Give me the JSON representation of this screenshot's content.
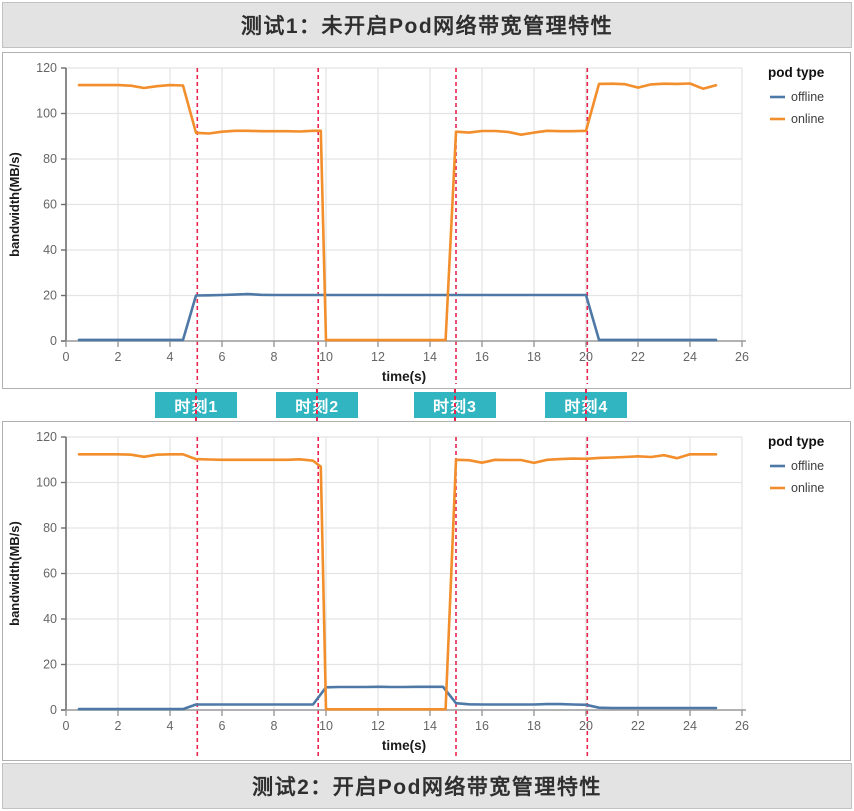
{
  "titles": {
    "test1": "测试1：未开启Pod网络带宽管理特性",
    "test2": "测试2：开启Pod网络带宽管理特性"
  },
  "moment_labels": [
    {
      "label": "时刻1",
      "t": 5.05
    },
    {
      "label": "时刻2",
      "t": 9.7
    },
    {
      "label": "时刻3",
      "t": 15.0
    },
    {
      "label": "时刻4",
      "t": 20.05
    }
  ],
  "colors": {
    "offline_line": "#4e79a7",
    "online_line": "#f28e2b",
    "dashed_marker": "#e8254f",
    "moment_box": "#31b5c0",
    "grid": "#e4e4e4",
    "y_axis": "#6e6e6e",
    "x_axis": "#9a9a9a",
    "tick_text": "#666666",
    "axis_title_text": "#1a1a1a",
    "title_bar_bg": "#e3e3e3"
  },
  "chart_data": [
    {
      "type": "line",
      "title": "测试1：未开启Pod网络带宽管理特性",
      "xlabel": "time(s)",
      "ylabel": "bandwidth(MB/s)",
      "xlim": [
        0,
        26
      ],
      "ylim": [
        0,
        120
      ],
      "xticks": [
        0,
        2,
        4,
        6,
        8,
        10,
        12,
        14,
        16,
        18,
        20,
        22,
        24,
        26
      ],
      "yticks": [
        0,
        20,
        40,
        60,
        80,
        100,
        120
      ],
      "grid": true,
      "legend_title": "pod type",
      "legend_position": "right",
      "vlines": {
        "x": [
          5.05,
          9.7,
          15.0,
          20.05
        ],
        "style": "dashed",
        "color": "#e8254f"
      },
      "series": [
        {
          "name": "offline",
          "color": "#4e79a7",
          "points": [
            [
              0.5,
              0.5
            ],
            [
              1,
              0.5
            ],
            [
              1.5,
              0.5
            ],
            [
              2,
              0.5
            ],
            [
              2.5,
              0.5
            ],
            [
              3,
              0.5
            ],
            [
              3.5,
              0.5
            ],
            [
              4,
              0.5
            ],
            [
              4.5,
              0.5
            ],
            [
              5,
              20
            ],
            [
              5.5,
              20.1
            ],
            [
              6,
              20.2
            ],
            [
              6.5,
              20.4
            ],
            [
              7,
              20.6
            ],
            [
              7.5,
              20.3
            ],
            [
              8,
              20.2
            ],
            [
              8.5,
              20.2
            ],
            [
              9,
              20.2
            ],
            [
              9.5,
              20.2
            ],
            [
              10,
              20.2
            ],
            [
              11,
              20.2
            ],
            [
              12,
              20.2
            ],
            [
              13,
              20.2
            ],
            [
              14,
              20.2
            ],
            [
              15,
              20.2
            ],
            [
              16,
              20.2
            ],
            [
              17,
              20.2
            ],
            [
              18,
              20.2
            ],
            [
              19,
              20.2
            ],
            [
              20,
              20.2
            ],
            [
              20.5,
              0.5
            ],
            [
              21,
              0.5
            ],
            [
              22,
              0.5
            ],
            [
              23,
              0.5
            ],
            [
              24,
              0.5
            ],
            [
              25,
              0.5
            ]
          ]
        },
        {
          "name": "online",
          "color": "#f28e2b",
          "points": [
            [
              0.5,
              112.5
            ],
            [
              1,
              112.5
            ],
            [
              1.5,
              112.5
            ],
            [
              2,
              112.5
            ],
            [
              2.5,
              112.2
            ],
            [
              3,
              111.2
            ],
            [
              3.5,
              112.0
            ],
            [
              4,
              112.5
            ],
            [
              4.5,
              112.3
            ],
            [
              5,
              91.5
            ],
            [
              5.5,
              91.2
            ],
            [
              6,
              92.0
            ],
            [
              6.5,
              92.4
            ],
            [
              7,
              92.4
            ],
            [
              7.5,
              92.2
            ],
            [
              8,
              92.2
            ],
            [
              8.5,
              92.2
            ],
            [
              9,
              92.1
            ],
            [
              9.5,
              92.4
            ],
            [
              9.8,
              92.4
            ],
            [
              10,
              0.4
            ],
            [
              10.5,
              0.4
            ],
            [
              11,
              0.4
            ],
            [
              12,
              0.4
            ],
            [
              13,
              0.4
            ],
            [
              14,
              0.4
            ],
            [
              14.6,
              0.4
            ],
            [
              15,
              92.0
            ],
            [
              15.5,
              91.6
            ],
            [
              16,
              92.3
            ],
            [
              16.5,
              92.3
            ],
            [
              17,
              91.9
            ],
            [
              17.5,
              90.7
            ],
            [
              18,
              91.6
            ],
            [
              18.5,
              92.4
            ],
            [
              19,
              92.2
            ],
            [
              19.5,
              92.2
            ],
            [
              20,
              92.4
            ],
            [
              20.5,
              113.0
            ],
            [
              21,
              113.1
            ],
            [
              21.5,
              112.9
            ],
            [
              22,
              111.4
            ],
            [
              22.5,
              112.8
            ],
            [
              23,
              113.1
            ],
            [
              23.5,
              113.0
            ],
            [
              24,
              113.2
            ],
            [
              24.5,
              110.9
            ],
            [
              25,
              112.4
            ]
          ]
        }
      ]
    },
    {
      "type": "line",
      "title": "测试2：开启Pod网络带宽管理特性",
      "xlabel": "time(s)",
      "ylabel": "bandwidth(MB/s)",
      "xlim": [
        0,
        26
      ],
      "ylim": [
        0,
        120
      ],
      "xticks": [
        0,
        2,
        4,
        6,
        8,
        10,
        12,
        14,
        16,
        18,
        20,
        22,
        24,
        26
      ],
      "yticks": [
        0,
        20,
        40,
        60,
        80,
        100,
        120
      ],
      "grid": true,
      "legend_title": "pod type",
      "legend_position": "right",
      "vlines": {
        "x": [
          5.05,
          9.7,
          15.0,
          20.05
        ],
        "style": "dashed",
        "color": "#e8254f"
      },
      "series": [
        {
          "name": "offline",
          "color": "#4e79a7",
          "points": [
            [
              0.5,
              0.4
            ],
            [
              1,
              0.4
            ],
            [
              1.5,
              0.4
            ],
            [
              2,
              0.4
            ],
            [
              2.5,
              0.4
            ],
            [
              3,
              0.4
            ],
            [
              3.5,
              0.4
            ],
            [
              4,
              0.4
            ],
            [
              4.5,
              0.4
            ],
            [
              5,
              2.4
            ],
            [
              5.5,
              2.4
            ],
            [
              6,
              2.4
            ],
            [
              6.5,
              2.4
            ],
            [
              7,
              2.4
            ],
            [
              7.5,
              2.4
            ],
            [
              8,
              2.4
            ],
            [
              8.5,
              2.4
            ],
            [
              9,
              2.4
            ],
            [
              9.5,
              2.4
            ],
            [
              10,
              10.0
            ],
            [
              10.5,
              10.1
            ],
            [
              11,
              10.1
            ],
            [
              11.5,
              10.1
            ],
            [
              12,
              10.2
            ],
            [
              12.5,
              10.1
            ],
            [
              13,
              10.1
            ],
            [
              13.5,
              10.2
            ],
            [
              14,
              10.2
            ],
            [
              14.5,
              10.2
            ],
            [
              15,
              3.0
            ],
            [
              15.5,
              2.5
            ],
            [
              16,
              2.4
            ],
            [
              17,
              2.4
            ],
            [
              18,
              2.4
            ],
            [
              18.5,
              2.6
            ],
            [
              19,
              2.6
            ],
            [
              19.5,
              2.4
            ],
            [
              20,
              2.3
            ],
            [
              20.5,
              1.0
            ],
            [
              21,
              0.9
            ],
            [
              22,
              0.9
            ],
            [
              23,
              0.9
            ],
            [
              24,
              0.9
            ],
            [
              25,
              0.9
            ]
          ]
        },
        {
          "name": "online",
          "color": "#f28e2b",
          "points": [
            [
              0.5,
              112.4
            ],
            [
              1,
              112.4
            ],
            [
              1.5,
              112.4
            ],
            [
              2,
              112.4
            ],
            [
              2.5,
              112.2
            ],
            [
              3,
              111.3
            ],
            [
              3.5,
              112.2
            ],
            [
              4,
              112.4
            ],
            [
              4.5,
              112.4
            ],
            [
              5,
              110.3
            ],
            [
              5.5,
              110.1
            ],
            [
              6,
              110.0
            ],
            [
              6.5,
              110.0
            ],
            [
              7,
              110.0
            ],
            [
              7.5,
              110.0
            ],
            [
              8,
              110.0
            ],
            [
              8.5,
              110.0
            ],
            [
              9,
              110.2
            ],
            [
              9.5,
              109.6
            ],
            [
              9.8,
              107.0
            ],
            [
              10,
              0.3
            ],
            [
              10.5,
              0.3
            ],
            [
              11,
              0.3
            ],
            [
              12,
              0.3
            ],
            [
              13,
              0.3
            ],
            [
              14,
              0.3
            ],
            [
              14.6,
              0.3
            ],
            [
              15,
              110.0
            ],
            [
              15.5,
              109.8
            ],
            [
              16,
              108.7
            ],
            [
              16.5,
              110.0
            ],
            [
              17,
              109.9
            ],
            [
              17.5,
              109.9
            ],
            [
              18,
              108.6
            ],
            [
              18.5,
              110.0
            ],
            [
              19,
              110.3
            ],
            [
              19.5,
              110.5
            ],
            [
              20,
              110.4
            ],
            [
              20.5,
              110.8
            ],
            [
              21,
              111.0
            ],
            [
              21.5,
              111.2
            ],
            [
              22,
              111.5
            ],
            [
              22.5,
              111.2
            ],
            [
              23,
              112.0
            ],
            [
              23.5,
              110.7
            ],
            [
              24,
              112.4
            ],
            [
              24.5,
              112.4
            ],
            [
              25,
              112.4
            ]
          ]
        }
      ]
    }
  ]
}
